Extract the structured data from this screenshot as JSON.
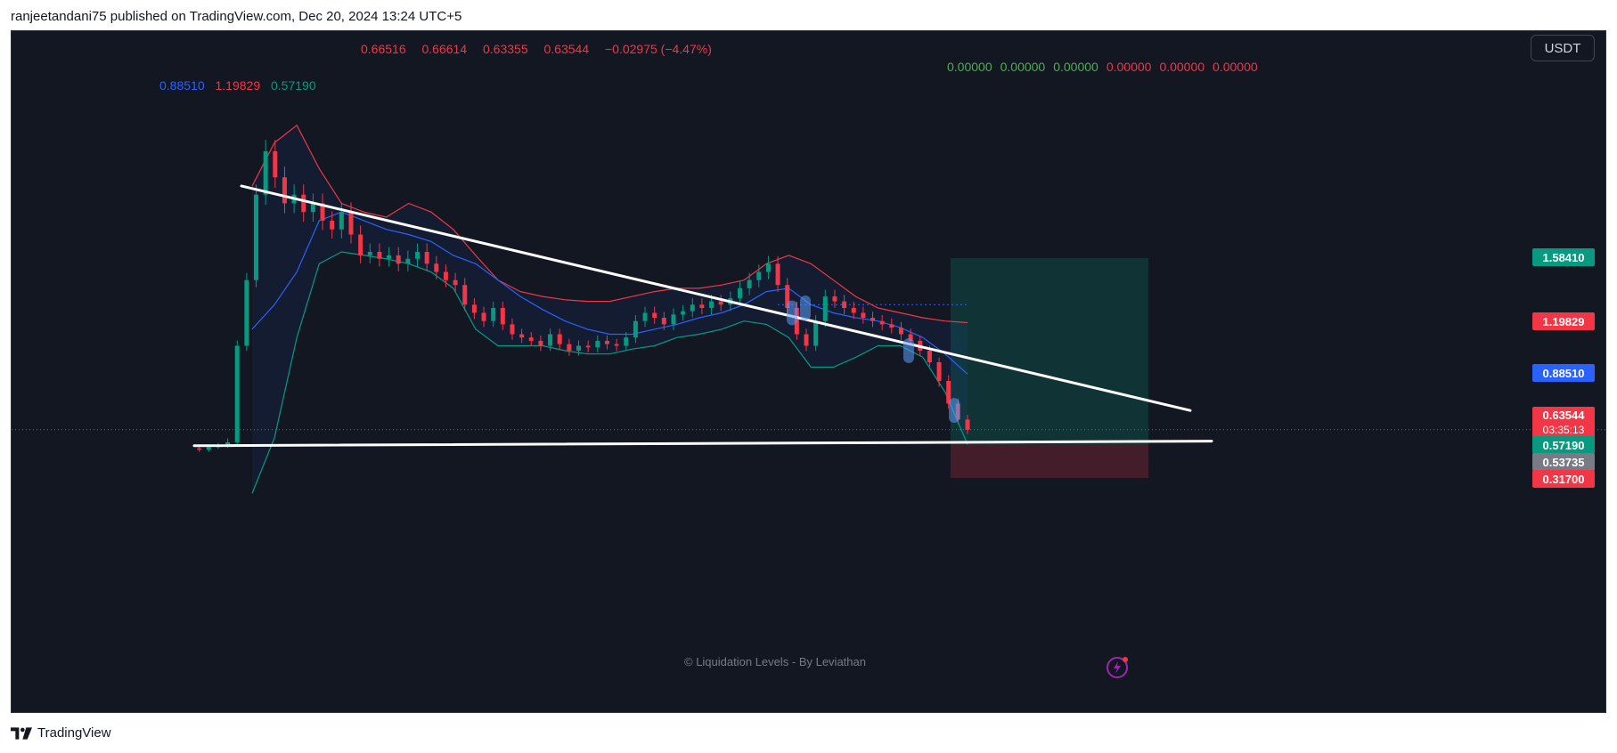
{
  "header": {
    "published_text": "ranjeetandani75 published on TradingView.com, Dec 20, 2024 13:24 UTC+5"
  },
  "ohlc": {
    "open": "0.66516",
    "high": "0.66614",
    "low": "0.63355",
    "close": "0.63544",
    "change": "−0.02975 (−4.47%)"
  },
  "bollinger_values": {
    "basis": "0.88510",
    "upper": "1.19829",
    "lower": "0.57190",
    "colors": {
      "basis": "#2962ff",
      "upper": "#f23645",
      "lower": "#089981"
    }
  },
  "liquidation_values": [
    {
      "text": "0.00000",
      "color": "#4caf50"
    },
    {
      "text": "0.00000",
      "color": "#4caf50"
    },
    {
      "text": "0.00000",
      "color": "#4caf50"
    },
    {
      "text": "0.00000",
      "color": "#f23645"
    },
    {
      "text": "0.00000",
      "color": "#f23645"
    },
    {
      "text": "0.00000",
      "color": "#f23645"
    }
  ],
  "currency_button": "USDT",
  "price_scale": [
    {
      "label": "1.58410",
      "price": 1.5841,
      "color": "#089981"
    },
    {
      "label": "1.19829",
      "price": 1.19829,
      "color": "#f23645"
    },
    {
      "label": "0.88510",
      "price": 0.8851,
      "color": "#2962ff"
    },
    {
      "label": "0.63544",
      "price": 0.63544,
      "color": "#f23645",
      "countdown": "03:35:13"
    },
    {
      "label": "0.57190",
      "price": 0.5719,
      "color": "#089981"
    },
    {
      "label": "0.53735",
      "price": 0.53735,
      "color": "#787b86"
    },
    {
      "label": "0.31700",
      "price": 0.317,
      "color": "#f23645"
    }
  ],
  "watermark": "© Liquidation Levels - By Leviathan",
  "footer": {
    "brand": "TradingView"
  },
  "colors": {
    "background": "#131722",
    "up": "#089981",
    "down": "#f23645",
    "basis": "#2962ff",
    "trendline": "#ffffff"
  },
  "chart_data": {
    "type": "candlestick",
    "symbol_quote": "USDT",
    "current_price": 0.63544,
    "close_series": [
      0.54,
      0.53,
      0.55,
      0.56,
      0.58,
      1.05,
      1.45,
      1.95,
      2.2,
      2.05,
      1.9,
      1.95,
      1.85,
      1.9,
      1.8,
      1.75,
      1.85,
      1.72,
      1.6,
      1.62,
      1.58,
      1.6,
      1.55,
      1.58,
      1.62,
      1.55,
      1.5,
      1.45,
      1.42,
      1.3,
      1.25,
      1.2,
      1.28,
      1.18,
      1.12,
      1.1,
      1.08,
      1.05,
      1.12,
      1.06,
      1.02,
      1.05,
      1.04,
      1.08,
      1.06,
      1.05,
      1.1,
      1.2,
      1.25,
      1.22,
      1.18,
      1.24,
      1.26,
      1.3,
      1.28,
      1.32,
      1.3,
      1.34,
      1.4,
      1.45,
      1.5,
      1.55,
      1.42,
      1.28,
      1.12,
      1.05,
      1.2,
      1.35,
      1.32,
      1.28,
      1.25,
      1.22,
      1.2,
      1.18,
      1.16,
      1.12,
      1.08,
      1.02,
      0.95,
      0.85,
      0.75,
      0.68,
      0.635
    ],
    "bollinger": {
      "basis": [
        1.15,
        1.3,
        1.5,
        1.8,
        1.85,
        1.8,
        1.75,
        1.72,
        1.68,
        1.6,
        1.55,
        1.45,
        1.35,
        1.27,
        1.2,
        1.15,
        1.12,
        1.12,
        1.15,
        1.18,
        1.22,
        1.25,
        1.3,
        1.38,
        1.4,
        1.3,
        1.25,
        1.22,
        1.2,
        1.16,
        1.1,
        1.0,
        0.88
      ],
      "upper": [
        2.0,
        2.25,
        2.35,
        2.1,
        1.9,
        1.85,
        1.82,
        1.9,
        1.85,
        1.75,
        1.6,
        1.45,
        1.38,
        1.35,
        1.33,
        1.32,
        1.32,
        1.35,
        1.38,
        1.4,
        1.4,
        1.42,
        1.45,
        1.55,
        1.6,
        1.55,
        1.45,
        1.35,
        1.28,
        1.25,
        1.22,
        1.2,
        1.19
      ],
      "lower": [
        0.2,
        0.6,
        1.1,
        1.55,
        1.62,
        1.6,
        1.58,
        1.55,
        1.5,
        1.4,
        1.15,
        1.05,
        1.05,
        1.05,
        1.02,
        1.0,
        1.0,
        1.03,
        1.05,
        1.1,
        1.12,
        1.15,
        1.2,
        1.18,
        1.1,
        0.92,
        0.92,
        0.98,
        1.05,
        1.05,
        0.98,
        0.8,
        0.57
      ]
    },
    "trendlines": [
      {
        "name": "descending resistance",
        "points": [
          {
            "i": 7,
            "price": 2.0
          },
          {
            "i": 110,
            "price": 0.72
          }
        ]
      },
      {
        "name": "support",
        "points": [
          {
            "i": 0,
            "price": 0.56
          },
          {
            "i": 113,
            "price": 0.585
          }
        ]
      }
    ],
    "position_zones": {
      "target": 1.5841,
      "entry": 0.5719,
      "stop": 0.317
    }
  }
}
